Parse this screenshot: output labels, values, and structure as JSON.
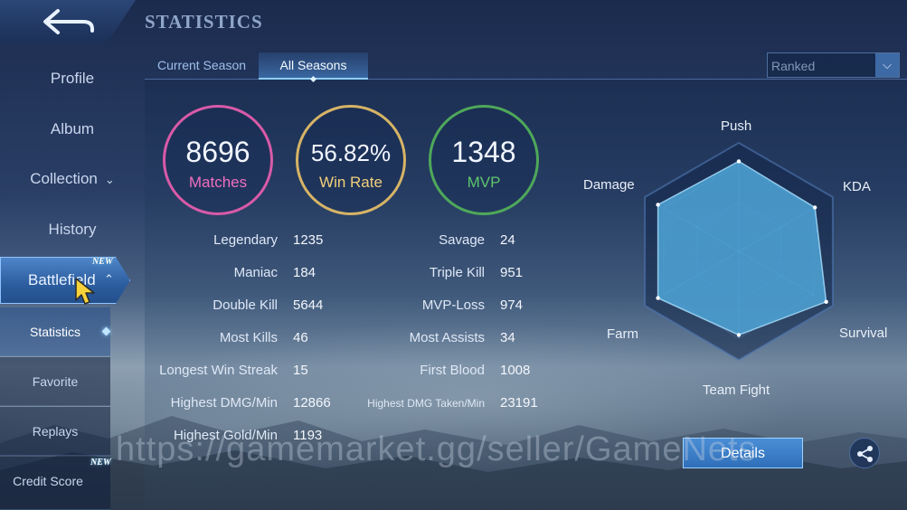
{
  "page_title": "STATISTICS",
  "sidebar": {
    "items": [
      {
        "label": "Profile"
      },
      {
        "label": "Album"
      },
      {
        "label": "Collection"
      },
      {
        "label": "History"
      }
    ],
    "battlefield": {
      "label": "Battlefield",
      "badge": "NEW"
    },
    "sub_items": [
      {
        "label": "Statistics"
      },
      {
        "label": "Favorite"
      },
      {
        "label": "Replays"
      },
      {
        "label": "Credit Score",
        "badge": "NEW"
      }
    ]
  },
  "tabs": [
    {
      "label": "Current Season"
    },
    {
      "label": "All Seasons"
    }
  ],
  "mode_dropdown": {
    "selected": "Ranked"
  },
  "summary": {
    "matches": {
      "value": "8696",
      "label": "Matches"
    },
    "win_rate": {
      "value": "56.82%",
      "label": "Win Rate"
    },
    "mvp": {
      "value": "1348",
      "label": "MVP"
    }
  },
  "stats_left": [
    {
      "label": "Legendary",
      "value": "1235"
    },
    {
      "label": "Maniac",
      "value": "184"
    },
    {
      "label": "Double Kill",
      "value": "5644"
    },
    {
      "label": "Most Kills",
      "value": "46"
    },
    {
      "label": "Longest Win Streak",
      "value": "15"
    },
    {
      "label": "Highest DMG/Min",
      "value": "12866"
    },
    {
      "label": "Highest Gold/Min",
      "value": "1193"
    }
  ],
  "stats_right": [
    {
      "label": "Savage",
      "value": "24"
    },
    {
      "label": "Triple Kill",
      "value": "951"
    },
    {
      "label": "MVP-Loss",
      "value": "974"
    },
    {
      "label": "Most Assists",
      "value": "34"
    },
    {
      "label": "First Blood",
      "value": "1008"
    },
    {
      "label": "Highest DMG Taken/Min",
      "value": "23191"
    }
  ],
  "radar": {
    "axes": [
      "Push",
      "KDA",
      "Survival",
      "Team Fight",
      "Farm",
      "Damage"
    ],
    "levels": [
      0.83,
      0.81,
      0.93,
      0.77,
      0.86,
      0.86
    ],
    "fill_color": "#4fa6d8"
  },
  "buttons": {
    "details": "Details"
  },
  "watermark": "https://gamemarket.gg/seller/GameNets",
  "colors": {
    "matches": "#d85aa8",
    "win_rate": "#d6b466",
    "mvp": "#4ea85a",
    "accent": "#4a8ed6"
  }
}
